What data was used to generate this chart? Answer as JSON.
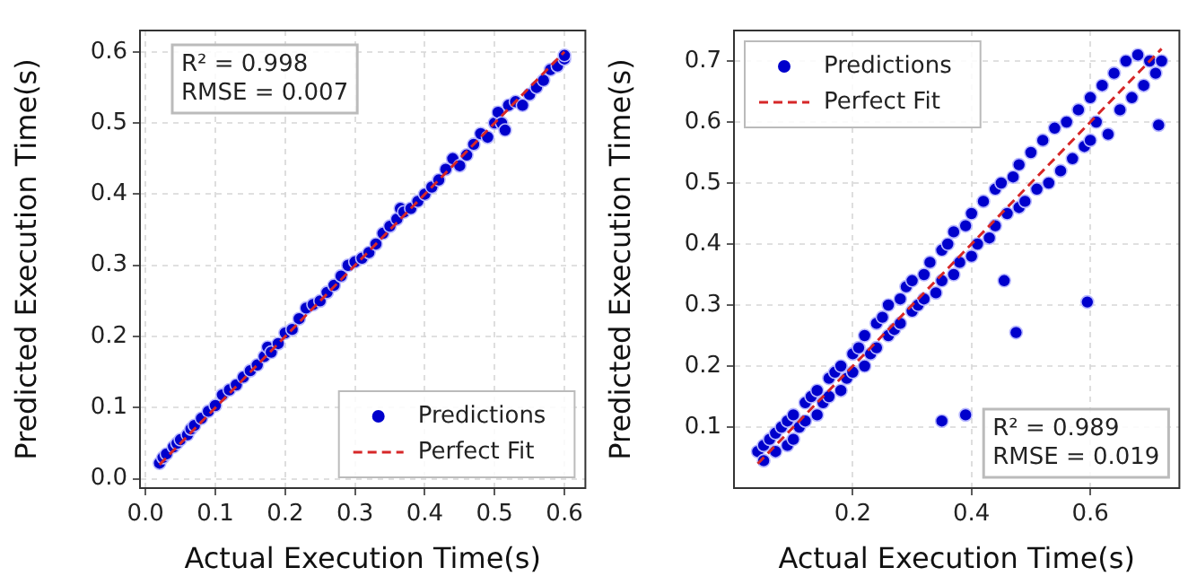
{
  "chart_data": [
    {
      "type": "scatter",
      "xlabel": "Actual Execution Time(s)",
      "ylabel": "Predicted Execution Time(s)",
      "xlim": [
        -0.008,
        0.63
      ],
      "ylim": [
        -0.013,
        0.63
      ],
      "xticks": [
        {
          "value": 0,
          "label": "0.0"
        },
        0.1,
        0.2,
        0.3,
        0.4,
        0.5,
        0.6
      ],
      "yticks": [
        {
          "value": 0,
          "label": "0.0"
        },
        0.1,
        0.2,
        0.3,
        0.4,
        0.5,
        0.6
      ],
      "grid": true,
      "legend": "bottom right",
      "annotations": [
        "R² = 0.998",
        "RMSE = 0.007"
      ],
      "series": [
        {
          "name": "Predictions",
          "marker": "circle",
          "color": "#0000cc",
          "x": [
            0.02,
            0.025,
            0.03,
            0.04,
            0.045,
            0.05,
            0.06,
            0.065,
            0.07,
            0.08,
            0.09,
            0.1,
            0.11,
            0.12,
            0.13,
            0.14,
            0.15,
            0.16,
            0.17,
            0.175,
            0.18,
            0.19,
            0.2,
            0.21,
            0.22,
            0.23,
            0.24,
            0.25,
            0.26,
            0.27,
            0.28,
            0.29,
            0.3,
            0.31,
            0.32,
            0.33,
            0.34,
            0.35,
            0.36,
            0.365,
            0.37,
            0.38,
            0.39,
            0.4,
            0.41,
            0.42,
            0.43,
            0.44,
            0.45,
            0.46,
            0.47,
            0.48,
            0.49,
            0.5,
            0.505,
            0.51,
            0.515,
            0.52,
            0.53,
            0.54,
            0.55,
            0.56,
            0.57,
            0.58,
            0.59,
            0.6,
            0.6
          ],
          "values": [
            0.022,
            0.03,
            0.035,
            0.045,
            0.05,
            0.055,
            0.062,
            0.07,
            0.075,
            0.085,
            0.095,
            0.103,
            0.118,
            0.125,
            0.132,
            0.143,
            0.152,
            0.16,
            0.172,
            0.185,
            0.178,
            0.19,
            0.205,
            0.21,
            0.225,
            0.24,
            0.245,
            0.25,
            0.262,
            0.272,
            0.285,
            0.3,
            0.305,
            0.31,
            0.318,
            0.33,
            0.345,
            0.355,
            0.365,
            0.38,
            0.375,
            0.38,
            0.39,
            0.4,
            0.41,
            0.42,
            0.435,
            0.45,
            0.44,
            0.455,
            0.47,
            0.485,
            0.48,
            0.5,
            0.515,
            0.5,
            0.49,
            0.525,
            0.53,
            0.525,
            0.54,
            0.55,
            0.56,
            0.575,
            0.58,
            0.59,
            0.595
          ]
        },
        {
          "name": "Perfect Fit",
          "type": "line",
          "color": "#d62728",
          "line_style": "dashed",
          "x": [
            0.02,
            0.6
          ],
          "values": [
            0.02,
            0.6
          ]
        }
      ]
    },
    {
      "type": "scatter",
      "xlabel": "Actual Execution Time(s)",
      "ylabel": "Predicted Execution Time(s)",
      "xlim": [
        0.0,
        0.75
      ],
      "ylim": [
        0.0,
        0.75
      ],
      "xticks": [
        0.2,
        0.4,
        0.6
      ],
      "yticks": [
        0.1,
        0.2,
        0.3,
        0.4,
        0.5,
        0.6,
        0.7
      ],
      "grid": true,
      "legend": "top left",
      "annotations": [
        "R² = 0.989",
        "RMSE = 0.019"
      ],
      "series": [
        {
          "name": "Predictions",
          "marker": "circle",
          "color": "#0000cc",
          "x": [
            0.04,
            0.05,
            0.05,
            0.06,
            0.07,
            0.07,
            0.08,
            0.09,
            0.09,
            0.1,
            0.1,
            0.11,
            0.12,
            0.12,
            0.13,
            0.14,
            0.14,
            0.15,
            0.16,
            0.16,
            0.17,
            0.18,
            0.18,
            0.19,
            0.2,
            0.2,
            0.21,
            0.22,
            0.22,
            0.23,
            0.24,
            0.24,
            0.25,
            0.26,
            0.26,
            0.27,
            0.28,
            0.28,
            0.29,
            0.3,
            0.3,
            0.31,
            0.32,
            0.32,
            0.33,
            0.34,
            0.35,
            0.35,
            0.36,
            0.37,
            0.37,
            0.38,
            0.39,
            0.4,
            0.4,
            0.41,
            0.42,
            0.43,
            0.44,
            0.44,
            0.45,
            0.46,
            0.47,
            0.48,
            0.48,
            0.49,
            0.5,
            0.51,
            0.52,
            0.53,
            0.54,
            0.55,
            0.56,
            0.57,
            0.58,
            0.59,
            0.6,
            0.6,
            0.61,
            0.62,
            0.63,
            0.64,
            0.65,
            0.66,
            0.67,
            0.68,
            0.69,
            0.7,
            0.71,
            0.72,
            0.35,
            0.39,
            0.455,
            0.475,
            0.595,
            0.715
          ],
          "values": [
            0.06,
            0.07,
            0.045,
            0.08,
            0.06,
            0.09,
            0.1,
            0.07,
            0.11,
            0.12,
            0.08,
            0.1,
            0.14,
            0.11,
            0.15,
            0.12,
            0.16,
            0.14,
            0.18,
            0.15,
            0.19,
            0.16,
            0.2,
            0.18,
            0.22,
            0.19,
            0.23,
            0.2,
            0.25,
            0.22,
            0.27,
            0.23,
            0.28,
            0.25,
            0.3,
            0.26,
            0.31,
            0.27,
            0.33,
            0.29,
            0.34,
            0.3,
            0.35,
            0.31,
            0.37,
            0.32,
            0.39,
            0.34,
            0.4,
            0.35,
            0.42,
            0.37,
            0.43,
            0.38,
            0.45,
            0.4,
            0.47,
            0.41,
            0.49,
            0.43,
            0.5,
            0.45,
            0.51,
            0.46,
            0.53,
            0.47,
            0.55,
            0.49,
            0.57,
            0.5,
            0.59,
            0.52,
            0.6,
            0.54,
            0.62,
            0.56,
            0.64,
            0.57,
            0.6,
            0.66,
            0.58,
            0.68,
            0.62,
            0.7,
            0.64,
            0.71,
            0.66,
            0.7,
            0.68,
            0.7,
            0.11,
            0.12,
            0.34,
            0.255,
            0.305,
            0.595
          ]
        },
        {
          "name": "Perfect Fit",
          "type": "line",
          "color": "#d62728",
          "line_style": "dashed",
          "x": [
            0.04,
            0.72
          ],
          "values": [
            0.04,
            0.72
          ]
        }
      ]
    }
  ]
}
